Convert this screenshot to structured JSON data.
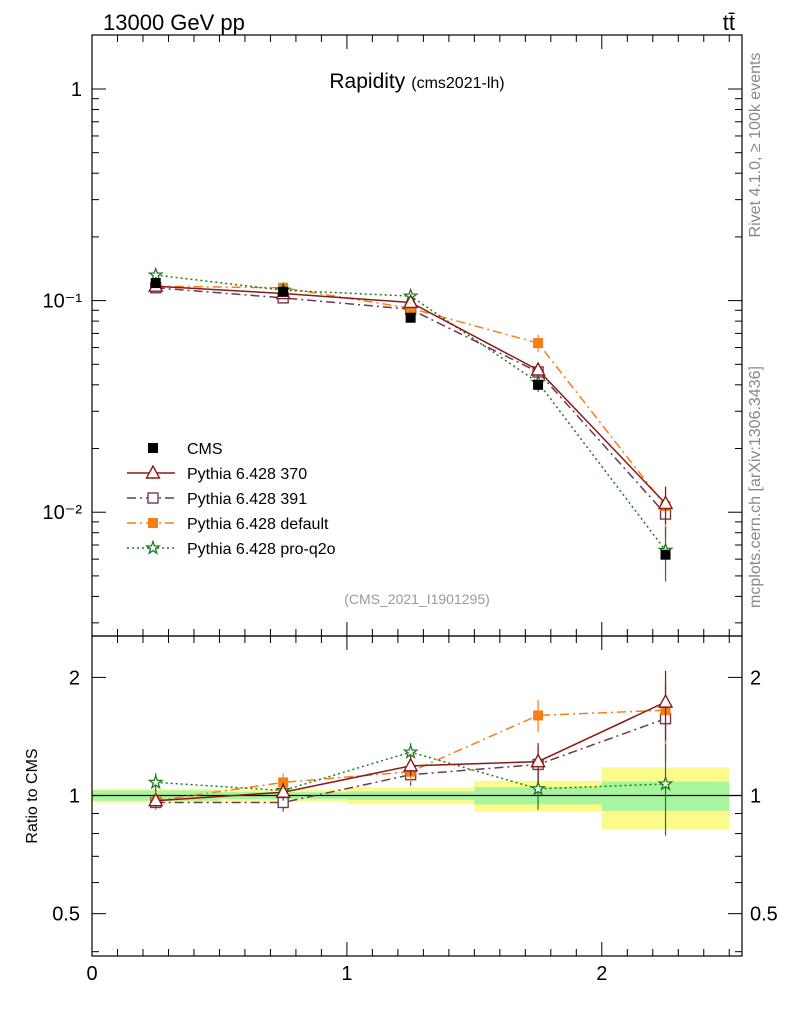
{
  "header": {
    "left": "13000 GeV pp",
    "right": "tt̄"
  },
  "side_labels": {
    "rivet": "Rivet 4.1.0, ≥ 100k events",
    "mcplots": "mcplots.cern.ch [arXiv:1306.3436]"
  },
  "colors": {
    "cms": "#000000",
    "p370": "#8b1a1a",
    "p391": "#6b3a55",
    "default": "#f57f17",
    "proq2o": "#1e7a1e",
    "band_inner": "#a8f5a0",
    "band_outer": "#fbfb8c"
  },
  "chart_data": {
    "type": "line",
    "title": "Rapidity",
    "subtitle": "(cms2021-lh)",
    "watermark": "(CMS_2021_I1901295)",
    "x_bins": [
      [
        0,
        0.5
      ],
      [
        0.5,
        1.0
      ],
      [
        1.0,
        1.5
      ],
      [
        1.5,
        2.0
      ],
      [
        2.0,
        2.5
      ]
    ],
    "x": [
      0.25,
      0.75,
      1.25,
      1.75,
      2.25
    ],
    "xlim": [
      0,
      2.55
    ],
    "x_ticks": [
      "0",
      "1",
      "2"
    ],
    "ylim": [
      0.0026,
      1.8
    ],
    "y_log": true,
    "y_ticks": [
      "1",
      "10⁻¹",
      "10⁻²"
    ],
    "series": [
      {
        "key": "cms",
        "name": "CMS",
        "values": [
          0.121,
          0.11,
          0.083,
          0.04,
          0.0063
        ],
        "errors": [
          0.004,
          0.004,
          0.003,
          0.002,
          0.0003
        ]
      },
      {
        "key": "p370",
        "name": "Pythia 6.428 370",
        "values": [
          0.117,
          0.108,
          0.098,
          0.047,
          0.011
        ],
        "errors": [
          0.004,
          0.004,
          0.004,
          0.004,
          0.0022
        ]
      },
      {
        "key": "p391",
        "name": "Pythia 6.428 391",
        "values": [
          0.115,
          0.103,
          0.091,
          0.046,
          0.0098
        ],
        "errors": [
          0.004,
          0.004,
          0.004,
          0.004,
          0.0022
        ]
      },
      {
        "key": "default",
        "name": "Pythia 6.428 default",
        "values": [
          0.117,
          0.115,
          0.092,
          0.063,
          0.0107
        ],
        "errors": [
          0.004,
          0.005,
          0.004,
          0.006,
          0.0025
        ]
      },
      {
        "key": "proq2o",
        "name": "Pythia 6.428 pro-q2o",
        "values": [
          0.132,
          0.112,
          0.105,
          0.041,
          0.0066
        ],
        "errors": [
          0.004,
          0.004,
          0.004,
          0.004,
          0.0019
        ]
      }
    ],
    "ratio": {
      "ylabel": "Ratio to CMS",
      "ylim": [
        0.39,
        2.55
      ],
      "y_ticks": [
        "2",
        "1",
        "0.5"
      ],
      "cms_band_inner": [
        0.03,
        0.02,
        0.025,
        0.05,
        0.085
      ],
      "cms_band_outer": [
        0.04,
        0.035,
        0.05,
        0.09,
        0.18
      ],
      "series": [
        {
          "key": "p370",
          "values": [
            0.97,
            1.02,
            1.19,
            1.22,
            1.73
          ],
          "errors": [
            0.04,
            0.05,
            0.07,
            0.14,
            0.35
          ]
        },
        {
          "key": "p391",
          "values": [
            0.96,
            0.96,
            1.13,
            1.2,
            1.57
          ],
          "errors": [
            0.04,
            0.05,
            0.07,
            0.14,
            0.35
          ]
        },
        {
          "key": "default",
          "values": [
            0.97,
            1.08,
            1.15,
            1.6,
            1.65
          ],
          "errors": [
            0.05,
            0.06,
            0.07,
            0.15,
            0.4
          ]
        },
        {
          "key": "proq2o",
          "values": [
            1.08,
            1.03,
            1.29,
            1.04,
            1.07
          ],
          "errors": [
            0.06,
            0.05,
            0.07,
            0.12,
            0.28
          ]
        }
      ]
    }
  }
}
